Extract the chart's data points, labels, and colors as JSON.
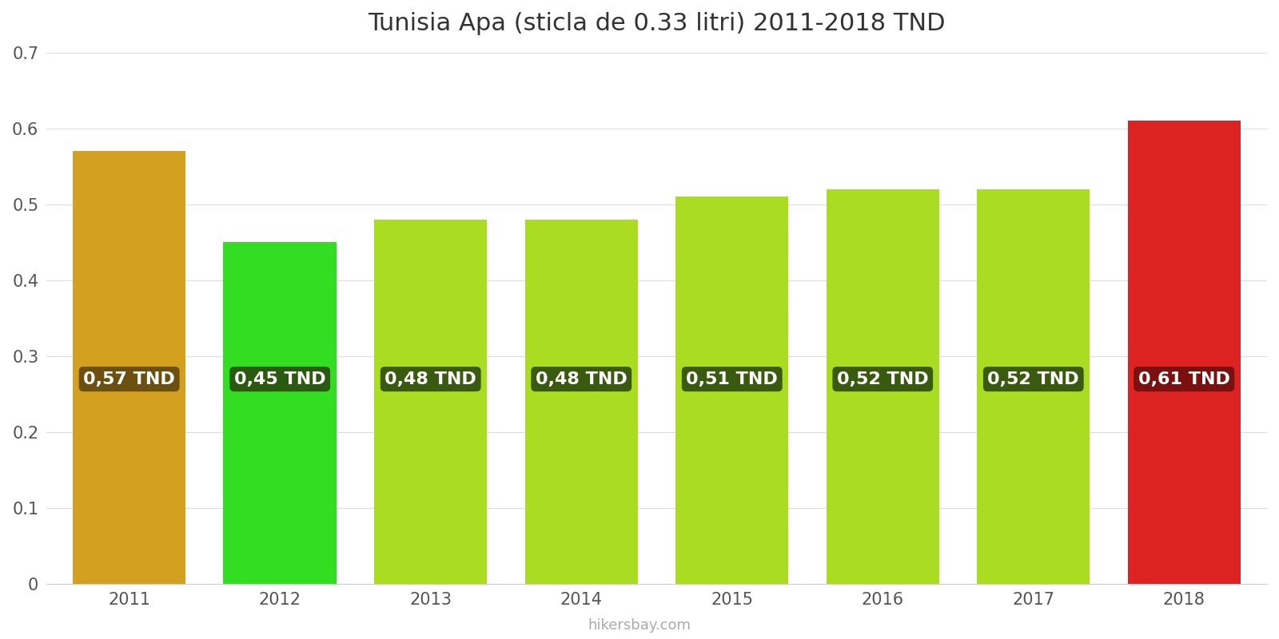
{
  "title": "Tunisia Apa (sticla de 0.33 litri) 2011-2018 TND",
  "years": [
    2011,
    2012,
    2013,
    2014,
    2015,
    2016,
    2017,
    2018
  ],
  "values": [
    0.57,
    0.45,
    0.48,
    0.48,
    0.51,
    0.52,
    0.52,
    0.61
  ],
  "labels": [
    "0,57 TND",
    "0,45 TND",
    "0,48 TND",
    "0,48 TND",
    "0,51 TND",
    "0,52 TND",
    "0,52 TND",
    "0,61 TND"
  ],
  "bar_colors": [
    "#d4a020",
    "#33dd22",
    "#aadd22",
    "#aadd22",
    "#aadd22",
    "#aadd22",
    "#aadd22",
    "#dd2222"
  ],
  "label_bg_colors": [
    "#6b5010",
    "#2a5a10",
    "#3a5a10",
    "#3a5a10",
    "#3a5a10",
    "#3a5a10",
    "#3a5a10",
    "#7a1010"
  ],
  "ylim": [
    0,
    0.7
  ],
  "yticks": [
    0,
    0.1,
    0.2,
    0.3,
    0.4,
    0.5,
    0.6,
    0.7
  ],
  "footer_text": "hikersbay.com",
  "background_color": "#ffffff",
  "title_fontsize": 22,
  "label_fontsize": 16,
  "tick_fontsize": 15,
  "bar_width": 0.75
}
